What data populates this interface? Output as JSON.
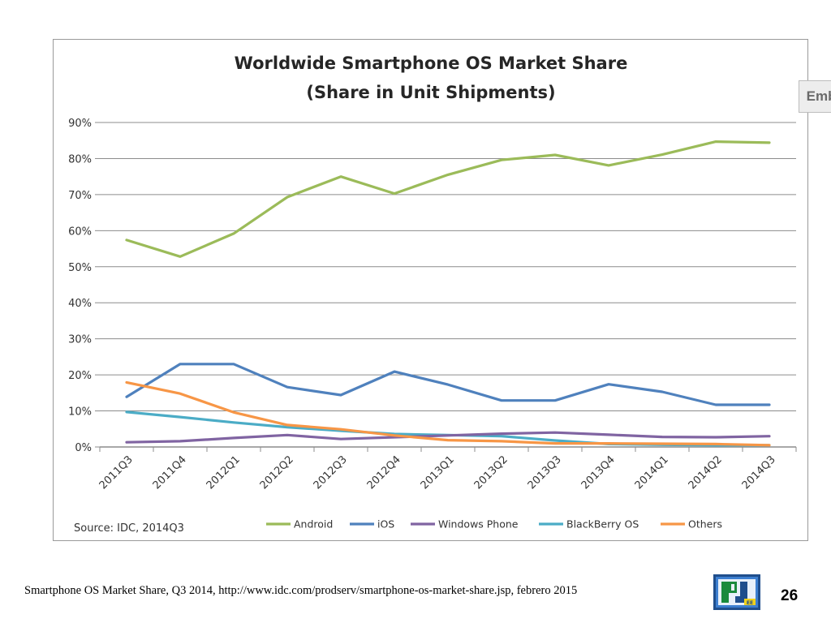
{
  "chart_data": {
    "type": "line",
    "title_line1": "Worldwide Smartphone OS Market Share",
    "title_line2": "(Share in Unit Shipments)",
    "categories": [
      "2011Q3",
      "2011Q4",
      "2012Q1",
      "2012Q2",
      "2012Q3",
      "2012Q4",
      "2013Q1",
      "2013Q2",
      "2013Q3",
      "2013Q4",
      "2014Q1",
      "2014Q2",
      "2014Q3"
    ],
    "y_ticks": [
      "0%",
      "10%",
      "20%",
      "30%",
      "40%",
      "50%",
      "60%",
      "70%",
      "80%",
      "90%"
    ],
    "ylim": [
      0,
      90
    ],
    "grid": true,
    "legend_position": "bottom",
    "source": "Source: IDC, 2014Q3",
    "series": [
      {
        "name": "Android",
        "color": "#9bbb59",
        "values": [
          57.4,
          52.8,
          59.2,
          69.3,
          75.0,
          70.3,
          75.5,
          79.6,
          81.0,
          78.1,
          81.1,
          84.7,
          84.4
        ]
      },
      {
        "name": "iOS",
        "color": "#4f81bd",
        "values": [
          13.9,
          23.0,
          23.0,
          16.6,
          14.4,
          20.9,
          17.3,
          12.9,
          12.9,
          17.4,
          15.3,
          11.7,
          11.7
        ]
      },
      {
        "name": "Windows Phone",
        "color": "#8064a2",
        "values": [
          1.3,
          1.6,
          2.5,
          3.3,
          2.2,
          2.7,
          3.2,
          3.7,
          4.0,
          3.4,
          2.8,
          2.7,
          3.0
        ]
      },
      {
        "name": "BlackBerry OS",
        "color": "#4bacc6",
        "values": [
          9.7,
          8.3,
          6.8,
          5.5,
          4.5,
          3.6,
          3.3,
          3.0,
          1.8,
          0.8,
          0.6,
          0.5,
          0.5
        ]
      },
      {
        "name": "Others",
        "color": "#f79646",
        "values": [
          17.9,
          14.8,
          9.6,
          6.1,
          4.9,
          3.2,
          1.9,
          1.6,
          1.0,
          1.0,
          0.9,
          0.8,
          0.5
        ]
      }
    ]
  },
  "embed_label": "Embed",
  "caption": "Smartphone OS Market Share, Q3 2014, http://www.idc.com/prodserv/smartphone-os-market-share.jsp, febrero 2015",
  "page_number": "26",
  "logo_text": "EE"
}
